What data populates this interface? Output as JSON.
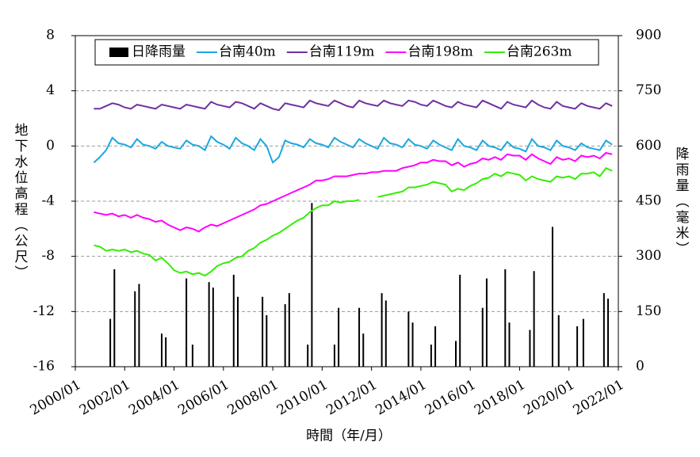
{
  "chart_data": {
    "type": "line",
    "x_label": "時間（年/月）",
    "y_label": "地下水位高程（公尺）",
    "y2_label": "降雨量（毫米）",
    "legend": "top",
    "grid": true,
    "xlim": [
      "2000/01",
      "2022/01"
    ],
    "xticks": [
      "2000/01",
      "2002/01",
      "2004/01",
      "2006/01",
      "2008/01",
      "2010/01",
      "2012/01",
      "2014/01",
      "2016/01",
      "2018/01",
      "2020/01",
      "2022/01"
    ],
    "ylim": [
      -16,
      8
    ],
    "yticks": [
      -16,
      -12,
      -8,
      -4,
      0,
      4,
      8
    ],
    "y2lim": [
      0,
      900
    ],
    "y2ticks": [
      0,
      150,
      300,
      450,
      600,
      750,
      900
    ],
    "x": [
      "2000/10",
      "2001/01",
      "2001/04",
      "2001/07",
      "2001/10",
      "2002/01",
      "2002/04",
      "2002/07",
      "2002/10",
      "2003/01",
      "2003/04",
      "2003/07",
      "2003/10",
      "2004/01",
      "2004/04",
      "2004/07",
      "2004/10",
      "2005/01",
      "2005/04",
      "2005/07",
      "2005/10",
      "2006/01",
      "2006/04",
      "2006/07",
      "2006/10",
      "2007/01",
      "2007/04",
      "2007/07",
      "2007/10",
      "2008/01",
      "2008/04",
      "2008/07",
      "2008/10",
      "2009/01",
      "2009/04",
      "2009/07",
      "2009/10",
      "2010/01",
      "2010/04",
      "2010/07",
      "2010/10",
      "2011/01",
      "2011/04",
      "2011/07",
      "2011/10",
      "2012/01",
      "2012/04",
      "2012/07",
      "2012/10",
      "2013/01",
      "2013/04",
      "2013/07",
      "2013/10",
      "2014/01",
      "2014/04",
      "2014/07",
      "2014/10",
      "2015/01",
      "2015/04",
      "2015/07",
      "2015/10",
      "2016/01",
      "2016/04",
      "2016/07",
      "2016/10",
      "2017/01",
      "2017/04",
      "2017/07",
      "2017/10",
      "2018/01",
      "2018/04",
      "2018/07",
      "2018/10",
      "2019/01",
      "2019/04",
      "2019/07",
      "2019/10",
      "2020/01",
      "2020/04",
      "2020/07",
      "2020/10",
      "2021/01",
      "2021/04",
      "2021/07",
      "2021/10"
    ],
    "series": [
      {
        "name": "日降雨量",
        "type": "bar",
        "axis": "y2",
        "color": "#000000",
        "x": [
          "2001/06",
          "2001/08",
          "2002/06",
          "2002/08",
          "2003/07",
          "2003/09",
          "2004/07",
          "2004/10",
          "2005/06",
          "2005/08",
          "2006/06",
          "2006/08",
          "2007/08",
          "2007/10",
          "2008/07",
          "2008/09",
          "2009/06",
          "2009/08",
          "2010/07",
          "2010/09",
          "2011/07",
          "2011/09",
          "2012/06",
          "2012/08",
          "2013/07",
          "2013/09",
          "2014/06",
          "2014/08",
          "2015/06",
          "2015/08",
          "2016/07",
          "2016/09",
          "2017/06",
          "2017/08",
          "2018/06",
          "2018/08",
          "2019/05",
          "2019/08",
          "2020/05",
          "2020/08",
          "2021/06",
          "2021/08"
        ],
        "values": [
          130,
          265,
          205,
          225,
          90,
          80,
          240,
          60,
          230,
          215,
          250,
          190,
          190,
          140,
          170,
          200,
          60,
          445,
          60,
          160,
          160,
          90,
          200,
          180,
          150,
          120,
          60,
          110,
          70,
          250,
          160,
          240,
          265,
          120,
          100,
          260,
          380,
          140,
          110,
          130,
          200,
          185
        ]
      },
      {
        "name": "台南40m",
        "color": "#1ba8e0",
        "values": [
          -1.2,
          -0.8,
          -0.3,
          0.6,
          0.2,
          0.1,
          -0.1,
          0.5,
          0.1,
          0.0,
          -0.2,
          0.3,
          0.0,
          -0.1,
          -0.2,
          0.4,
          0.1,
          0.0,
          -0.3,
          0.7,
          0.3,
          0.1,
          -0.2,
          0.6,
          0.2,
          0.0,
          -0.3,
          0.5,
          0.0,
          -1.2,
          -0.8,
          0.4,
          0.2,
          0.1,
          -0.1,
          0.5,
          0.2,
          0.1,
          -0.1,
          0.6,
          0.3,
          0.1,
          -0.1,
          0.5,
          0.2,
          0.0,
          -0.2,
          0.6,
          0.2,
          0.1,
          -0.1,
          0.5,
          0.1,
          0.0,
          -0.2,
          0.4,
          0.1,
          -0.1,
          -0.3,
          0.5,
          0.0,
          -0.1,
          -0.3,
          0.4,
          0.0,
          -0.1,
          -0.3,
          0.3,
          -0.1,
          -0.2,
          -0.4,
          0.5,
          0.0,
          -0.1,
          -0.3,
          0.4,
          0.0,
          -0.1,
          -0.3,
          0.2,
          -0.1,
          -0.2,
          -0.3,
          0.4,
          0.1
        ]
      },
      {
        "name": "台南119m",
        "color": "#7030a0",
        "values": [
          2.7,
          2.7,
          2.9,
          3.1,
          3.0,
          2.8,
          2.7,
          3.0,
          2.9,
          2.8,
          2.7,
          3.0,
          2.9,
          2.8,
          2.7,
          3.0,
          2.9,
          2.8,
          2.7,
          3.2,
          3.0,
          2.9,
          2.8,
          3.2,
          3.1,
          2.9,
          2.7,
          3.1,
          2.9,
          2.7,
          2.6,
          3.1,
          3.0,
          2.9,
          2.8,
          3.3,
          3.1,
          3.0,
          2.9,
          3.3,
          3.1,
          2.9,
          2.8,
          3.3,
          3.1,
          3.0,
          2.9,
          3.3,
          3.1,
          3.0,
          2.9,
          3.3,
          3.2,
          3.0,
          2.9,
          3.3,
          3.1,
          2.9,
          2.8,
          3.2,
          3.0,
          2.9,
          2.8,
          3.3,
          3.1,
          2.9,
          2.7,
          3.2,
          3.0,
          2.9,
          2.8,
          3.3,
          3.0,
          2.8,
          2.7,
          3.2,
          2.9,
          2.8,
          2.7,
          3.1,
          2.9,
          2.8,
          2.7,
          3.1,
          2.9
        ]
      },
      {
        "name": "台南198m",
        "color": "#ff00ff",
        "values": [
          -4.8,
          -4.9,
          -5.0,
          -4.9,
          -5.1,
          -5.0,
          -5.2,
          -5.0,
          -5.2,
          -5.3,
          -5.5,
          -5.4,
          -5.7,
          -5.9,
          -6.1,
          -5.9,
          -6.0,
          -6.2,
          -5.9,
          -5.7,
          -5.8,
          -5.6,
          -5.4,
          -5.2,
          -5.0,
          -4.8,
          -4.6,
          -4.3,
          -4.2,
          -4.0,
          -3.8,
          -3.6,
          -3.4,
          -3.2,
          -3.0,
          -2.8,
          -2.5,
          -2.5,
          -2.4,
          -2.2,
          -2.2,
          -2.2,
          -2.1,
          -2.0,
          -2.0,
          -1.9,
          -1.9,
          -1.8,
          -1.8,
          -1.8,
          -1.6,
          -1.5,
          -1.4,
          -1.2,
          -1.2,
          -1.0,
          -1.1,
          -1.1,
          -1.4,
          -1.2,
          -1.5,
          -1.3,
          -1.2,
          -0.9,
          -1.0,
          -0.8,
          -1.0,
          -0.6,
          -0.7,
          -0.7,
          -1.0,
          -0.6,
          -0.9,
          -1.1,
          -1.3,
          -0.8,
          -1.0,
          -0.9,
          -1.1,
          -0.7,
          -0.8,
          -0.7,
          -0.9,
          -0.5,
          -0.6
        ]
      },
      {
        "name": "台南263m",
        "color": "#33ee00",
        "values": [
          -7.2,
          -7.3,
          -7.6,
          -7.5,
          -7.6,
          -7.5,
          -7.7,
          -7.6,
          -7.8,
          -7.9,
          -8.3,
          -8.1,
          -8.5,
          -9.0,
          -9.2,
          -9.1,
          -9.3,
          -9.2,
          -9.4,
          -9.1,
          -8.7,
          -8.5,
          -8.4,
          -8.1,
          -8.0,
          -7.6,
          -7.4,
          -7.0,
          -6.8,
          -6.5,
          -6.3,
          -6.0,
          -5.7,
          -5.4,
          -5.2,
          -4.8,
          -4.5,
          -4.3,
          -4.3,
          -4.0,
          -4.1,
          -4.0,
          -4.0,
          -3.9,
          null,
          null,
          -3.7,
          -3.6,
          -3.5,
          -3.4,
          -3.3,
          -3.0,
          -3.0,
          -2.9,
          -2.8,
          -2.6,
          -2.7,
          -2.8,
          -3.3,
          -3.1,
          -3.2,
          -2.9,
          -2.7,
          -2.4,
          -2.3,
          -2.0,
          -2.2,
          -1.9,
          -2.0,
          -2.1,
          -2.5,
          -2.2,
          -2.4,
          -2.5,
          -2.6,
          -2.2,
          -2.3,
          -2.2,
          -2.4,
          -2.0,
          -2.0,
          -1.9,
          -2.2,
          -1.6,
          -1.8
        ]
      }
    ]
  }
}
